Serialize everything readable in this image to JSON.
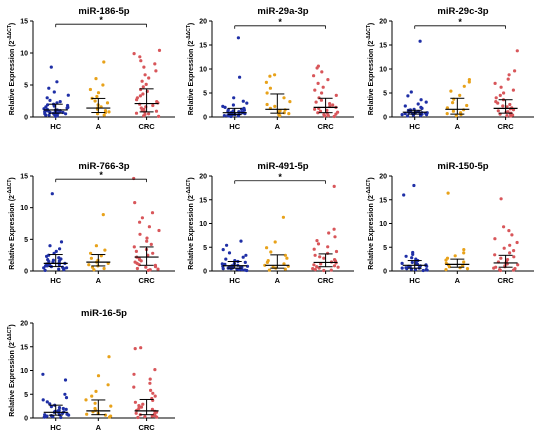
{
  "chart_data": [
    {
      "type": "scatter",
      "title": "miR-186-5p",
      "ylabel": "Relative Expression (2",
      "ylabel_sup": "-ΔΔCT",
      "ylabel_end": ")",
      "categories": [
        "HC",
        "A",
        "CRC"
      ],
      "ylim": [
        0,
        15
      ],
      "yticks": [
        0,
        5,
        10,
        15
      ],
      "colors": [
        "#1f2fa6",
        "#e8a21a",
        "#d8565a"
      ],
      "series": [
        {
          "values": [
            0.1,
            0.2,
            0.3,
            0.3,
            0.4,
            0.4,
            0.5,
            0.5,
            0.6,
            0.6,
            0.7,
            0.7,
            0.8,
            0.8,
            0.9,
            0.9,
            1.0,
            1.0,
            1.1,
            1.1,
            1.2,
            1.3,
            1.4,
            1.5,
            1.6,
            1.7,
            1.8,
            1.9,
            2.0,
            2.2,
            2.4,
            2.6,
            3.0,
            3.4,
            3.9,
            4.5,
            5.5,
            7.8
          ],
          "median": 1.1,
          "q1": 0.6,
          "q3": 2.0
        },
        {
          "values": [
            0.3,
            0.5,
            0.7,
            0.8,
            1.0,
            1.2,
            1.4,
            1.6,
            1.9,
            2.2,
            2.5,
            2.9,
            3.2,
            3.8,
            4.3,
            5.0,
            6.0,
            8.6
          ],
          "median": 1.4,
          "q1": 0.7,
          "q3": 2.9
        },
        {
          "values": [
            0.1,
            0.2,
            0.4,
            0.5,
            0.6,
            0.8,
            0.9,
            1.0,
            1.2,
            1.4,
            1.6,
            1.8,
            2.0,
            2.2,
            2.4,
            2.7,
            3.0,
            3.3,
            3.6,
            4.0,
            4.3,
            4.7,
            5.1,
            5.6,
            6.1,
            6.6,
            7.2,
            7.8,
            8.3,
            8.8,
            9.4,
            9.9,
            10.4
          ],
          "median": 2.1,
          "q1": 0.8,
          "q3": 4.4
        }
      ],
      "significance": [
        {
          "from": 0,
          "to": 2,
          "label": "*",
          "y": 14.5
        }
      ]
    },
    {
      "type": "scatter",
      "title": "miR-29a-3p",
      "ylabel": "Relative Expression (2",
      "ylabel_sup": "-ΔΔCT",
      "ylabel_end": ")",
      "categories": [
        "HC",
        "A",
        "CRC"
      ],
      "ylim": [
        0,
        20
      ],
      "yticks": [
        0,
        5,
        10,
        15,
        20
      ],
      "colors": [
        "#1f2fa6",
        "#e8a21a",
        "#d8565a"
      ],
      "series": [
        {
          "values": [
            0.1,
            0.2,
            0.2,
            0.3,
            0.3,
            0.4,
            0.5,
            0.5,
            0.6,
            0.6,
            0.7,
            0.8,
            0.8,
            0.9,
            1.0,
            1.0,
            1.1,
            1.2,
            1.3,
            1.4,
            1.5,
            1.6,
            1.7,
            1.8,
            2.0,
            2.2,
            2.5,
            2.9,
            3.3,
            4.0,
            8.3,
            16.5
          ],
          "median": 0.9,
          "q1": 0.5,
          "q3": 1.8
        },
        {
          "values": [
            0.3,
            0.5,
            0.7,
            0.9,
            1.1,
            1.3,
            1.5,
            1.8,
            2.2,
            2.6,
            3.2,
            4.0,
            5.0,
            6.0,
            7.2,
            8.5,
            8.8
          ],
          "median": 1.6,
          "q1": 0.8,
          "q3": 4.8
        },
        {
          "values": [
            0.1,
            0.2,
            0.3,
            0.5,
            0.6,
            0.8,
            0.9,
            1.0,
            1.2,
            1.4,
            1.6,
            1.8,
            2.0,
            2.2,
            2.5,
            2.8,
            3.1,
            3.5,
            4.0,
            4.5,
            5.0,
            5.6,
            6.2,
            7.0,
            7.8,
            8.6,
            9.4,
            10.2,
            10.6
          ],
          "median": 2.0,
          "q1": 0.9,
          "q3": 3.9
        }
      ],
      "significance": [
        {
          "from": 0,
          "to": 2,
          "label": "*",
          "y": 19.0
        }
      ]
    },
    {
      "type": "scatter",
      "title": "miR-29c-3p",
      "ylabel": "Relative Expression (2",
      "ylabel_sup": "-ΔΔCT",
      "ylabel_end": ")",
      "categories": [
        "HC",
        "A",
        "CRC"
      ],
      "ylim": [
        0,
        20
      ],
      "yticks": [
        0,
        5,
        10,
        15,
        20
      ],
      "colors": [
        "#1f2fa6",
        "#e8a21a",
        "#d8565a"
      ],
      "series": [
        {
          "values": [
            0.2,
            0.3,
            0.4,
            0.5,
            0.5,
            0.6,
            0.6,
            0.7,
            0.7,
            0.8,
            0.8,
            0.9,
            0.9,
            1.0,
            1.0,
            1.1,
            1.1,
            1.2,
            1.3,
            1.4,
            1.5,
            1.6,
            1.8,
            2.0,
            2.3,
            2.7,
            3.1,
            3.6,
            4.4,
            5.2,
            15.8
          ],
          "median": 1.0,
          "q1": 0.6,
          "q3": 1.4
        },
        {
          "values": [
            0.3,
            0.5,
            0.7,
            0.9,
            1.2,
            1.5,
            1.9,
            2.4,
            3.0,
            3.7,
            4.5,
            5.4,
            6.4,
            7.3,
            7.8
          ],
          "median": 1.6,
          "q1": 0.6,
          "q3": 3.9
        },
        {
          "values": [
            0.2,
            0.3,
            0.4,
            0.6,
            0.7,
            0.8,
            1.0,
            1.1,
            1.3,
            1.5,
            1.7,
            1.9,
            2.1,
            2.3,
            2.6,
            2.9,
            3.2,
            3.6,
            4.0,
            4.5,
            5.0,
            5.6,
            6.2,
            7.0,
            7.9,
            8.8,
            9.6,
            13.8
          ],
          "median": 1.8,
          "q1": 0.8,
          "q3": 3.6
        }
      ],
      "significance": [
        {
          "from": 0,
          "to": 2,
          "label": "*",
          "y": 19.0
        }
      ]
    },
    {
      "type": "scatter",
      "title": "miR-766-3p",
      "ylabel": "Relative Expression (2",
      "ylabel_sup": "-ΔΔCT",
      "ylabel_end": ")",
      "categories": [
        "HC",
        "A",
        "CRC"
      ],
      "ylim": [
        0,
        15
      ],
      "yticks": [
        0,
        5,
        10,
        15
      ],
      "colors": [
        "#1f2fa6",
        "#e8a21a",
        "#d8565a"
      ],
      "series": [
        {
          "values": [
            0.1,
            0.2,
            0.3,
            0.3,
            0.4,
            0.5,
            0.5,
            0.6,
            0.7,
            0.8,
            0.8,
            0.9,
            1.0,
            1.0,
            1.1,
            1.2,
            1.3,
            1.4,
            1.5,
            1.6,
            1.7,
            1.8,
            1.9,
            2.1,
            2.3,
            2.5,
            2.8,
            3.1,
            3.5,
            4.0,
            4.6,
            12.2
          ],
          "median": 1.2,
          "q1": 0.7,
          "q3": 2.6
        },
        {
          "values": [
            0.2,
            0.4,
            0.6,
            0.8,
            1.0,
            1.2,
            1.4,
            1.7,
            2.0,
            2.4,
            2.8,
            3.3,
            4.0,
            8.9
          ],
          "median": 1.4,
          "q1": 0.8,
          "q3": 2.6
        },
        {
          "values": [
            0.1,
            0.2,
            0.3,
            0.4,
            0.6,
            0.7,
            0.9,
            1.0,
            1.2,
            1.4,
            1.6,
            1.8,
            2.0,
            2.2,
            2.5,
            2.8,
            3.1,
            3.4,
            3.8,
            4.2,
            4.7,
            5.2,
            5.8,
            6.4,
            7.0,
            7.7,
            8.4,
            9.2,
            10.8,
            14.6
          ],
          "median": 2.2,
          "q1": 0.9,
          "q3": 3.8
        }
      ],
      "significance": [
        {
          "from": 0,
          "to": 2,
          "label": "*",
          "y": 14.5
        }
      ]
    },
    {
      "type": "scatter",
      "title": "miR-491-5p",
      "ylabel": "Relative Expression (2",
      "ylabel_sup": "-ΔΔCT",
      "ylabel_end": ")",
      "categories": [
        "HC",
        "A",
        "CRC"
      ],
      "ylim": [
        0,
        20
      ],
      "yticks": [
        0,
        5,
        10,
        15,
        20
      ],
      "colors": [
        "#1f2fa6",
        "#e8a21a",
        "#d8565a"
      ],
      "series": [
        {
          "values": [
            0.1,
            0.2,
            0.3,
            0.3,
            0.4,
            0.5,
            0.5,
            0.6,
            0.6,
            0.7,
            0.8,
            0.8,
            0.9,
            1.0,
            1.0,
            1.1,
            1.2,
            1.3,
            1.4,
            1.5,
            1.6,
            1.8,
            2.0,
            2.2,
            2.5,
            2.9,
            3.3,
            3.8,
            4.5,
            5.4,
            6.3
          ],
          "median": 1.1,
          "q1": 0.6,
          "q3": 2.0
        },
        {
          "values": [
            0.2,
            0.4,
            0.6,
            0.8,
            1.0,
            1.2,
            1.5,
            1.8,
            2.2,
            2.7,
            3.3,
            4.0,
            4.9,
            6.1,
            11.3
          ],
          "median": 1.2,
          "q1": 0.6,
          "q3": 3.4
        },
        {
          "values": [
            0.1,
            0.2,
            0.3,
            0.5,
            0.6,
            0.8,
            0.9,
            1.1,
            1.3,
            1.5,
            1.7,
            1.9,
            2.1,
            2.4,
            2.7,
            3.0,
            3.3,
            3.7,
            4.1,
            4.6,
            5.1,
            5.7,
            6.4,
            7.2,
            8.0,
            8.8,
            17.8
          ],
          "median": 1.8,
          "q1": 0.9,
          "q3": 3.6
        }
      ],
      "significance": [
        {
          "from": 0,
          "to": 2,
          "label": "*",
          "y": 19.0
        }
      ]
    },
    {
      "type": "scatter",
      "title": "miR-150-5p",
      "ylabel": "Relative Expression (2",
      "ylabel_sup": "-ΔΔCT",
      "ylabel_end": ")",
      "categories": [
        "HC",
        "A",
        "CRC"
      ],
      "ylim": [
        0,
        20
      ],
      "yticks": [
        0,
        5,
        10,
        15,
        20
      ],
      "colors": [
        "#1f2fa6",
        "#e8a21a",
        "#d8565a"
      ],
      "series": [
        {
          "values": [
            0.1,
            0.2,
            0.3,
            0.3,
            0.4,
            0.5,
            0.6,
            0.6,
            0.7,
            0.8,
            0.9,
            1.0,
            1.0,
            1.1,
            1.2,
            1.3,
            1.4,
            1.5,
            1.6,
            1.8,
            2.0,
            2.2,
            2.5,
            2.8,
            3.1,
            3.5,
            3.9,
            16.0,
            18.0
          ],
          "median": 1.2,
          "q1": 0.6,
          "q3": 2.2
        },
        {
          "values": [
            0.3,
            0.5,
            0.7,
            0.9,
            1.1,
            1.3,
            1.6,
            1.9,
            2.3,
            2.7,
            3.2,
            3.8,
            4.5,
            16.4
          ],
          "median": 1.4,
          "q1": 0.8,
          "q3": 2.5
        },
        {
          "values": [
            0.1,
            0.2,
            0.3,
            0.5,
            0.6,
            0.8,
            0.9,
            1.1,
            1.3,
            1.5,
            1.7,
            1.9,
            2.1,
            2.4,
            2.7,
            3.0,
            3.4,
            3.8,
            4.3,
            4.8,
            5.4,
            6.0,
            6.8,
            7.6,
            8.5,
            9.3,
            15.2
          ],
          "median": 1.7,
          "q1": 0.8,
          "q3": 3.3
        }
      ]
    },
    {
      "type": "scatter",
      "title": "miR-16-5p",
      "ylabel": "Relative Expression (2",
      "ylabel_sup": "-ΔΔCT",
      "ylabel_end": ")",
      "categories": [
        "HC",
        "A",
        "CRC"
      ],
      "ylim": [
        0,
        20
      ],
      "yticks": [
        0,
        5,
        10,
        15,
        20
      ],
      "colors": [
        "#1f2fa6",
        "#e8a21a",
        "#d8565a"
      ],
      "series": [
        {
          "values": [
            0.1,
            0.2,
            0.3,
            0.3,
            0.4,
            0.5,
            0.6,
            0.7,
            0.7,
            0.8,
            0.9,
            1.0,
            1.1,
            1.2,
            1.3,
            1.4,
            1.5,
            1.6,
            1.8,
            2.0,
            2.2,
            2.4,
            2.7,
            3.0,
            3.4,
            3.8,
            4.3,
            5.0,
            8.0,
            9.2
          ],
          "median": 1.2,
          "q1": 0.6,
          "q3": 2.7
        },
        {
          "values": [
            0.2,
            0.4,
            0.6,
            0.8,
            1.0,
            1.3,
            1.6,
            2.0,
            2.5,
            3.1,
            3.8,
            4.6,
            5.6,
            7.0,
            8.9,
            12.9
          ],
          "median": 1.5,
          "q1": 0.7,
          "q3": 3.8
        },
        {
          "values": [
            0.1,
            0.2,
            0.3,
            0.4,
            0.5,
            0.7,
            0.8,
            1.0,
            1.2,
            1.4,
            1.6,
            1.8,
            2.0,
            2.3,
            2.6,
            2.9,
            3.3,
            3.7,
            4.1,
            4.6,
            5.2,
            5.8,
            6.5,
            7.3,
            8.2,
            9.2,
            10.2,
            14.6,
            14.8
          ],
          "median": 1.5,
          "q1": 0.7,
          "q3": 3.9
        }
      ]
    }
  ]
}
